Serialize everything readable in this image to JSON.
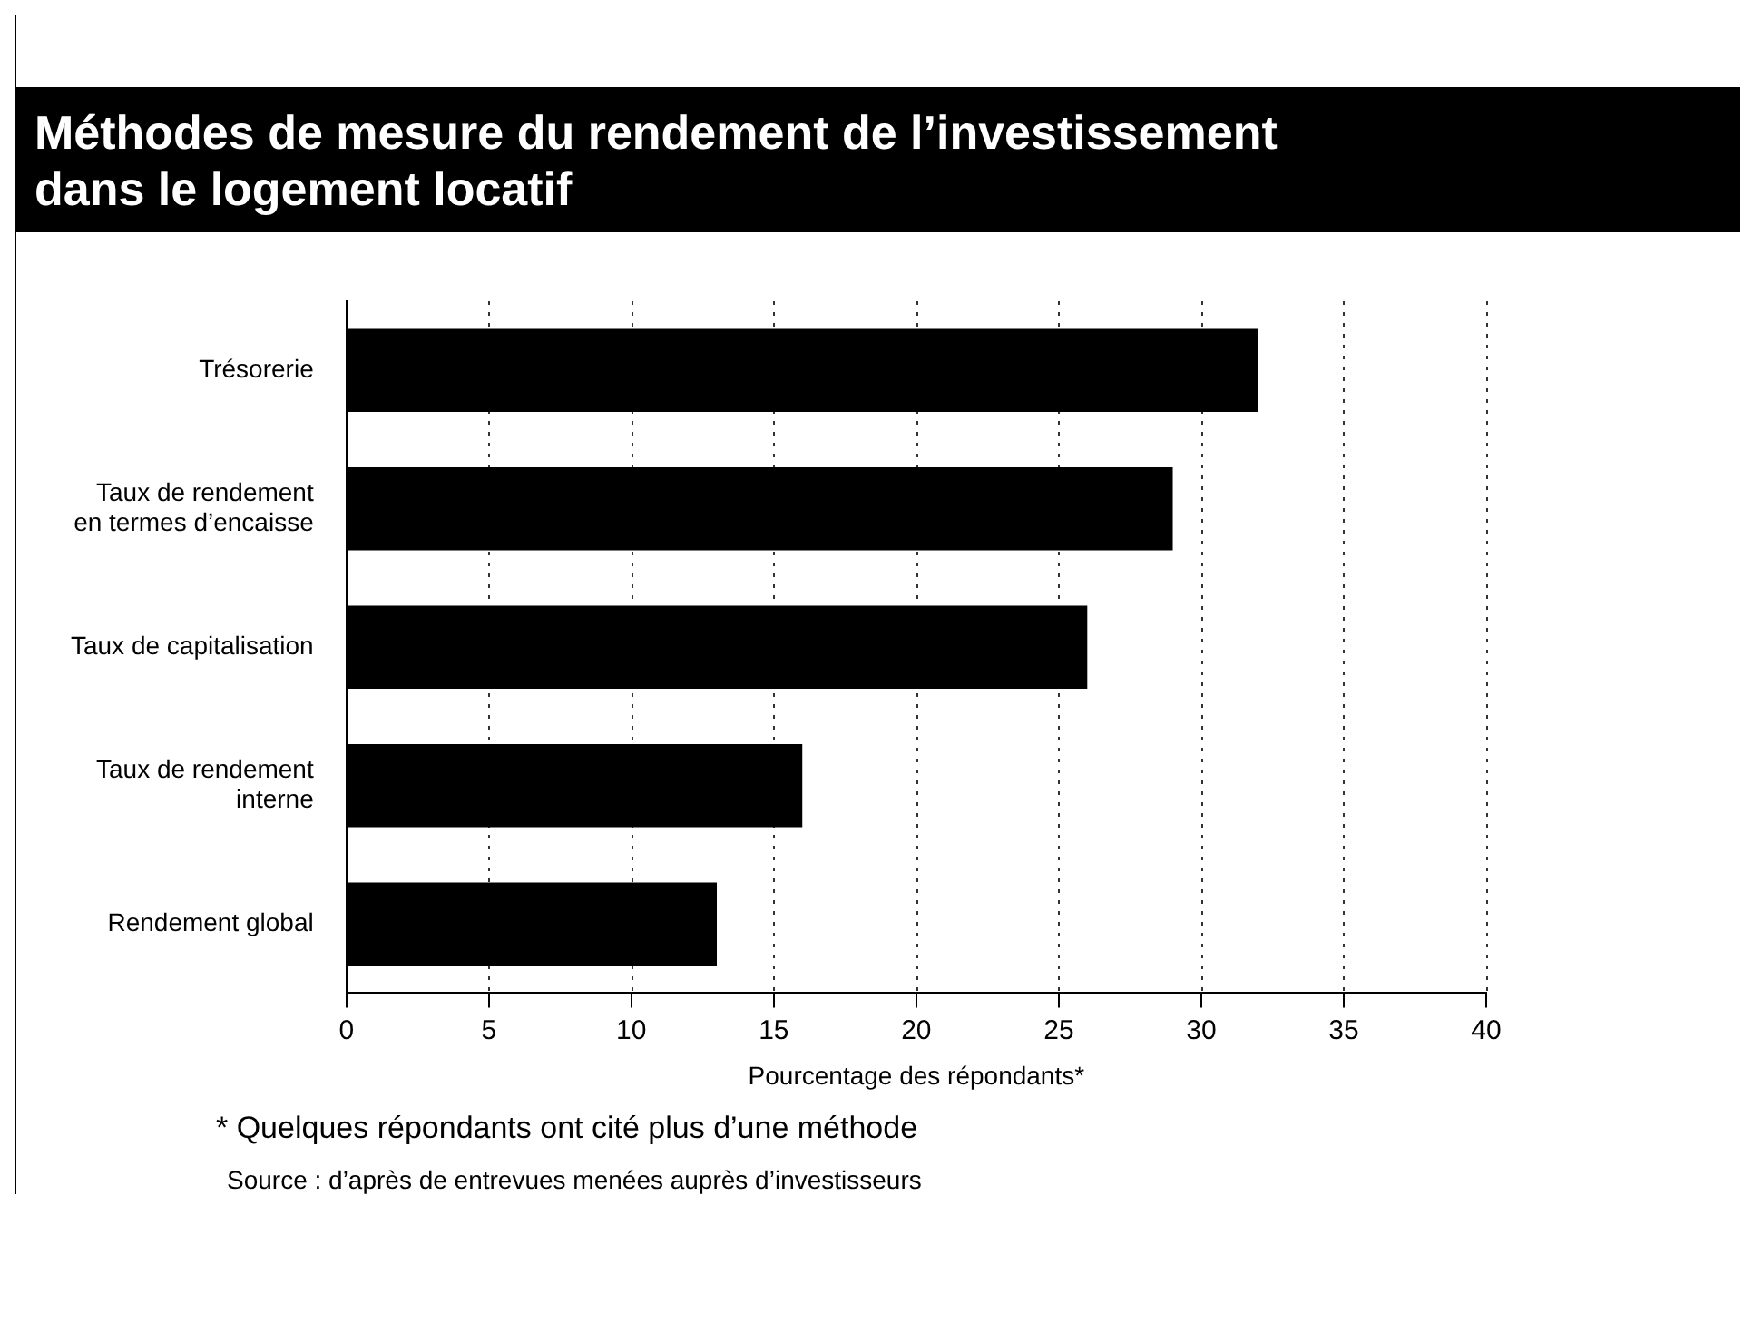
{
  "chart_data": {
    "type": "bar",
    "orientation": "horizontal",
    "title": "Méthodes de mesure du rendement de l’investissement dans le logement locatif",
    "xlabel": "Pourcentage des répondants*",
    "categories": [
      "Trésorerie",
      "Taux de rendement en termes d’encaisse",
      "Taux de capitalisation",
      "Taux de rendement interne",
      "Rendement global"
    ],
    "values": [
      32,
      29,
      26,
      16,
      13
    ],
    "color": "#000000",
    "xlim": [
      0,
      40
    ],
    "xticks": [
      0,
      5,
      10,
      15,
      20,
      25,
      30,
      35,
      40
    ],
    "grid": "x",
    "legend": false,
    "annotations": [
      "* Quelques répondants ont cité plus d’une méthode",
      "Source :  d’après de entrevues menées auprès d’investisseurs"
    ]
  }
}
